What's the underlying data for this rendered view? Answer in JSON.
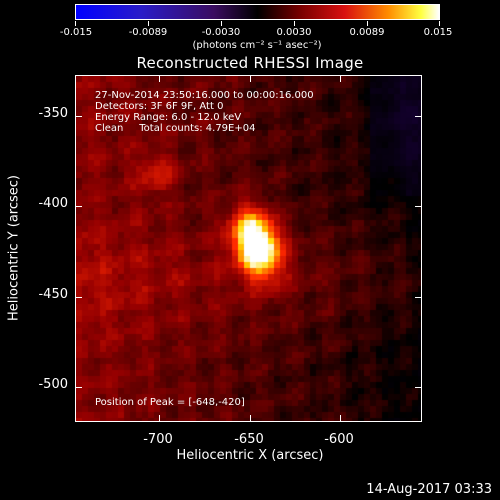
{
  "colorbar": {
    "ticks": [
      "-0.015",
      "-0.0089",
      "-0.0030",
      "0.0030",
      "0.0089",
      "0.015"
    ],
    "units": "(photons cm⁻² s⁻¹ asec⁻²)"
  },
  "title": "Reconstructed RHESSI Image",
  "info": {
    "line1": "27-Nov-2014 23:50:16.000 to 00:00:16.000",
    "line2": "Detectors: 3F 6F 9F, Att 0",
    "line3": "Energy Range: 6.0 - 12.0 keV",
    "line4": "Clean     Total counts: 4.79E+04"
  },
  "peak": "Position of Peak = [-648,-420]",
  "axes": {
    "ylabel": "Heliocentric Y (arcsec)",
    "xlabel": "Heliocentric X (arcsec)",
    "yticks": [
      "-350",
      "-400",
      "-450",
      "-500"
    ],
    "xticks": [
      "-700",
      "-650",
      "-600"
    ]
  },
  "datestamp": "14-Aug-2017 03:33"
}
